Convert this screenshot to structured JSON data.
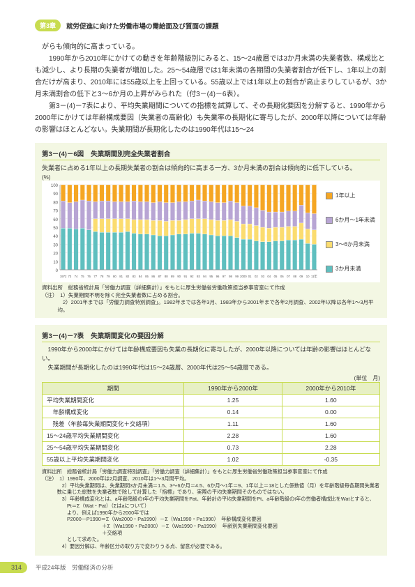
{
  "header": {
    "chapter_tag": "第3章",
    "chapter_title": "就労促進に向けた労働市場の需給面及び質面の課題"
  },
  "body_paragraphs": [
    "がらも傾向的に高まっている。",
    "　1990年から2010年にかけての動きを年齢階級別にみると、15～24歳層では3か月未満の失業者数、構成比とも減少し、より長期の失業者が増加した。25～54歳層では1年未満の各期間の失業者割合が低下し、1年以上の割合だけが高まり、2010年には55歳以上を上回っている。55歳以上では1年以上の割合が高止まりしているが、3か月未満割合の低下と3～6か月の上昇がみられた（付3－(4)－6表）。",
    "　第3－(4)－7表により、平均失業期間についての指標を試算して、その長期化要因を分解すると、1990年から2000年にかけては年齢構成要因（失業者の高齢化）も失業率の長期化に寄与したが、2000年以降については年齢の影響はほとんどない。失業期間が長期化したのは1990年代は15～24"
  ],
  "figure": {
    "number": "第3－(4)－6図",
    "title": "失業期間別完全失業者割合",
    "subtitle": "失業者に占める1年以上の長期失業者の割合は傾向的に高まる一方、3か月未満の割合は傾向的に低下している。",
    "y_unit": "(%)",
    "y_ticks": [
      0,
      10,
      20,
      30,
      40,
      50,
      60,
      70,
      80,
      90,
      100
    ],
    "x_labels": [
      "1972",
      "73",
      "74",
      "75",
      "76",
      "77",
      "78",
      "79",
      "80",
      "81",
      "82",
      "83",
      "84",
      "85",
      "86",
      "87",
      "88",
      "89",
      "90",
      "91",
      "92",
      "93",
      "94",
      "95",
      "96",
      "97",
      "98",
      "99",
      "2000",
      "01",
      "02",
      "03",
      "04",
      "05",
      "06",
      "07",
      "08",
      "09",
      "10",
      "11年"
    ],
    "bar_width": 0.7,
    "background_color": "#ffffff",
    "grid_color": "#dddddd",
    "series": [
      {
        "label": "1年以上",
        "color": "#f5a623"
      },
      {
        "label": "6か月～1年未満",
        "color": "#b8a5d4"
      },
      {
        "label": "3～6か月未満",
        "color": "#fbdc6f"
      },
      {
        "label": "3か月未満",
        "color": "#5fbfbf"
      }
    ],
    "data": [
      {
        "y": 1972,
        "m3": 49,
        "m36": 0,
        "m61": 32,
        "y1": 19
      },
      {
        "y": 1973,
        "m3": 49,
        "m36": 0,
        "m61": 30,
        "y1": 21
      },
      {
        "y": 1974,
        "m3": 48,
        "m36": 0,
        "m61": 32,
        "y1": 20
      },
      {
        "y": 1975,
        "m3": 49,
        "m36": 0,
        "m61": 33,
        "y1": 18
      },
      {
        "y": 1976,
        "m3": 47,
        "m36": 0,
        "m61": 34,
        "y1": 19
      },
      {
        "y": 1977,
        "m3": 45,
        "m36": 15,
        "m61": 20,
        "y1": 20
      },
      {
        "y": 1978,
        "m3": 44,
        "m36": 16,
        "m61": 21,
        "y1": 19
      },
      {
        "y": 1979,
        "m3": 44,
        "m36": 16,
        "m61": 21,
        "y1": 19
      },
      {
        "y": 1980,
        "m3": 44,
        "m36": 16,
        "m61": 20,
        "y1": 20
      },
      {
        "y": 1981,
        "m3": 44,
        "m36": 16,
        "m61": 20,
        "y1": 20
      },
      {
        "y": 1982,
        "m3": 45,
        "m36": 15,
        "m61": 20,
        "y1": 20
      },
      {
        "y": 1983,
        "m3": 43,
        "m36": 16,
        "m61": 22,
        "y1": 19
      },
      {
        "y": 1984,
        "m3": 42,
        "m36": 17,
        "m61": 21,
        "y1": 20
      },
      {
        "y": 1985,
        "m3": 42,
        "m36": 17,
        "m61": 21,
        "y1": 20
      },
      {
        "y": 1986,
        "m3": 41,
        "m36": 17,
        "m61": 21,
        "y1": 21
      },
      {
        "y": 1987,
        "m3": 40,
        "m36": 18,
        "m61": 22,
        "y1": 20
      },
      {
        "y": 1988,
        "m3": 40,
        "m36": 17,
        "m61": 22,
        "y1": 21
      },
      {
        "y": 1989,
        "m3": 41,
        "m36": 17,
        "m61": 21,
        "y1": 21
      },
      {
        "y": 1990,
        "m3": 42,
        "m36": 16,
        "m61": 22,
        "y1": 20
      },
      {
        "y": 1991,
        "m3": 42,
        "m36": 17,
        "m61": 21,
        "y1": 20
      },
      {
        "y": 1992,
        "m3": 43,
        "m36": 17,
        "m61": 21,
        "y1": 19
      },
      {
        "y": 1993,
        "m3": 43,
        "m36": 17,
        "m61": 22,
        "y1": 18
      },
      {
        "y": 1994,
        "m3": 42,
        "m36": 18,
        "m61": 21,
        "y1": 19
      },
      {
        "y": 1995,
        "m3": 41,
        "m36": 18,
        "m61": 21,
        "y1": 20
      },
      {
        "y": 1996,
        "m3": 40,
        "m36": 18,
        "m61": 21,
        "y1": 21
      },
      {
        "y": 1997,
        "m3": 40,
        "m36": 18,
        "m61": 21,
        "y1": 21
      },
      {
        "y": 1998,
        "m3": 40,
        "m36": 19,
        "m61": 22,
        "y1": 19
      },
      {
        "y": 1999,
        "m3": 38,
        "m36": 19,
        "m61": 22,
        "y1": 21
      },
      {
        "y": 2000,
        "m3": 36,
        "m36": 18,
        "m61": 21,
        "y1": 25
      },
      {
        "y": 2001,
        "m3": 36,
        "m36": 18,
        "m61": 21,
        "y1": 25
      },
      {
        "y": 2002,
        "m3": 34,
        "m36": 18,
        "m61": 21,
        "y1": 27
      },
      {
        "y": 2003,
        "m3": 33,
        "m36": 17,
        "m61": 20,
        "y1": 30
      },
      {
        "y": 2004,
        "m3": 33,
        "m36": 16,
        "m61": 19,
        "y1": 32
      },
      {
        "y": 2005,
        "m3": 34,
        "m36": 16,
        "m61": 18,
        "y1": 32
      },
      {
        "y": 2006,
        "m3": 34,
        "m36": 16,
        "m61": 18,
        "y1": 32
      },
      {
        "y": 2007,
        "m3": 35,
        "m36": 16,
        "m61": 18,
        "y1": 31
      },
      {
        "y": 2008,
        "m3": 35,
        "m36": 16,
        "m61": 18,
        "y1": 31
      },
      {
        "y": 2009,
        "m3": 36,
        "m36": 19,
        "m61": 21,
        "y1": 24
      },
      {
        "y": 2010,
        "m3": 31,
        "m36": 17,
        "m61": 19,
        "y1": 33
      },
      {
        "y": 2011,
        "m3": 30,
        "m36": 17,
        "m61": 19,
        "y1": 34
      }
    ],
    "notes": [
      "資料出所　総務省統計局「労働力調査（詳細集計）」をもとに厚生労働省労働政策担当参事官室にて作成",
      "（注）　1）失業期間不明を除く完全失業者数に占める割合。",
      "　　　　2）2001年までは「労働力調査特別調査」。1982年までは各年3月、1983年から2001年まで各年2月調査、2002年以降は各年1～3月平均。"
    ]
  },
  "table": {
    "number": "第3－(4)－7表",
    "title": "失業期間変化の要因分解",
    "desc": [
      "　1990年から2000年にかけては年齢構成要因も失業の長期化に寄与したが、2000年以降については年齢の影響はほとんどない。",
      "　失業期間が長期化したのは1990年代は15～24歳層、2000年代は25～54歳層である。"
    ],
    "unit": "(単位　月)",
    "columns": [
      "期間",
      "1990年から2000年",
      "2000年から2010年"
    ],
    "rows": [
      [
        "平均失業期間変化",
        "1.25",
        "1.60"
      ],
      [
        "　年齢構成変化",
        "0.14",
        "0.00"
      ],
      [
        "　残差（年齢毎失業期間変化＋交絡項）",
        "1.11",
        "1.60"
      ],
      [
        "15～24歳平均失業期間変化",
        "2.28",
        "1.60"
      ],
      [
        "25～54歳平均失業期間変化",
        "0.73",
        "2.28"
      ],
      [
        "55歳以上平均失業期間変化",
        "1.02",
        "-0.35"
      ]
    ],
    "notes": [
      "資料出所　総務省統計局「労働力調査特別調査」「労働力調査（詳細集計）」をもとに厚生労働省労働政策担当参事官室にて作成",
      "（注）　1）1990年、2000年は2月調査、2010年は1～3月間平均。",
      "　　　　2）平均失業期間は、失業期間3か月未満＝1.5、3～6か月＝4.5、6か月～1年＝9、1年以上＝18とした係数値（月）を年齢階級毎各期間失業者数に乗じた総数を失業者数で除して計算した「指標」であり、実際の平均失業期間そのものではない。",
      "　　　　3）年齢構成変化とは、a年齢階級のt年の平均失業期間をPat、年齢計の平均失業期間をPt、a年齢階級のt年の労働者構成比をWatとすると、",
      "　　　　　Pt＝Σ（Wat・Pat）（Σはaについて）",
      "　　　　　より、例えば1990年から2000年では",
      "　　　　　P2000－P1990＝Σ（Wa2000・Pa1990）－Σ（Wa1990・Pa1990）　年齢構成変化要因",
      "　　　　　　　　　　　　＋Σ（Wa1990・Pa2000）－Σ（Wa1990・Pa1990）　年齢別失業期間変化要因",
      "　　　　　　　　　　　　＋交絡項",
      "　　　　　として求めた。",
      "　　　　4）要因分解は、年齢区分の取り方で変わりうる点、留意が必要である。"
    ]
  },
  "footer": {
    "page_num": "314",
    "text": "平成24年版　労働経済の分析"
  }
}
